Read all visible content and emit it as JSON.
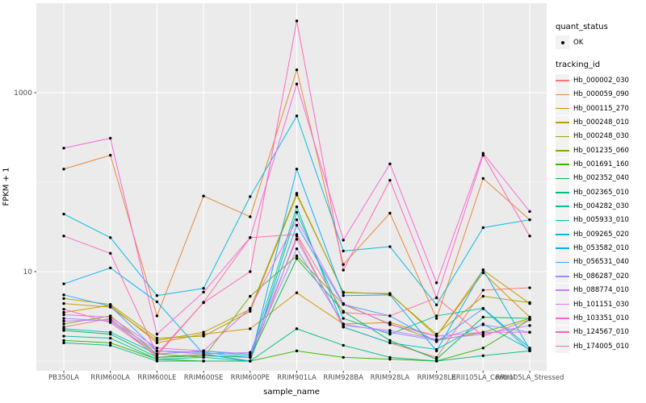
{
  "chart_data": {
    "type": "line",
    "title": "",
    "xlabel": "sample_name",
    "ylabel": "FPKM + 1",
    "y_scale": "log10",
    "y_tick_labels": [
      "1000",
      "10"
    ],
    "y_ticks": [
      1000,
      10
    ],
    "y_minor_gridlines": [
      1,
      100,
      10000
    ],
    "ylim": [
      0.9,
      9500
    ],
    "grid": true,
    "legend_position": "right",
    "x_categories": [
      "PB350LA",
      "RRIM600LA",
      "RRIM600LE",
      "RRIM600SE",
      "RRIM600PE",
      "RRIM901LA",
      "RRIM928BA",
      "RRIM928LA",
      "RRIM928LE",
      "RRII105LA_Control",
      "RRII105LA_Stressed"
    ],
    "legend": {
      "quant_status_title": "quant_status",
      "quant_status_items": [
        "OK"
      ],
      "tracking_id_title": "tracking_id"
    },
    "point_color": "#000000",
    "series": [
      {
        "name": "Hb_000002_030",
        "color": "#F8766D",
        "values": [
          2.4,
          3.0,
          1.1,
          1.2,
          1.0,
          25,
          2.4,
          1.6,
          1.1,
          6.2,
          6.6
        ]
      },
      {
        "name": "Hb_000059_090",
        "color": "#EA8331",
        "values": [
          140,
          200,
          3.2,
          70,
          41,
          1800,
          12,
          45,
          3.0,
          110,
          38
        ]
      },
      {
        "name": "Hb_000115_270",
        "color": "#D89000",
        "values": [
          3.5,
          4.2,
          1.6,
          2.0,
          2.3,
          5.8,
          2.6,
          2.7,
          1.9,
          9.7,
          3.1
        ]
      },
      {
        "name": "Hb_000248_010",
        "color": "#C49A00",
        "values": [
          4.4,
          4.0,
          1.7,
          2.1,
          3.8,
          75,
          5.8,
          5.7,
          1.9,
          10.4,
          4.4
        ]
      },
      {
        "name": "Hb_000248_030",
        "color": "#A3A500",
        "values": [
          5.0,
          4.3,
          1.8,
          1.9,
          3.6,
          72,
          5.9,
          5.6,
          2.0,
          5.3,
          4.5
        ]
      },
      {
        "name": "Hb_001235_060",
        "color": "#7CAE00",
        "values": [
          2.6,
          3.2,
          1.2,
          1.1,
          5.3,
          15,
          4.3,
          2.6,
          1.7,
          2.1,
          3.0
        ]
      },
      {
        "name": "Hb_001691_160",
        "color": "#39B600",
        "values": [
          1.7,
          1.6,
          1.05,
          1.0,
          1.0,
          1.3,
          1.1,
          1.05,
          1.0,
          1.4,
          2.9
        ]
      },
      {
        "name": "Hb_002352_040",
        "color": "#00BB4E",
        "values": [
          2.2,
          2.0,
          1.1,
          1.15,
          1.1,
          14,
          3.6,
          1.7,
          1.05,
          3.1,
          3.0
        ]
      },
      {
        "name": "Hb_002365_010",
        "color": "#00BF7D",
        "values": [
          1.6,
          1.5,
          1.0,
          1.0,
          1.0,
          2.3,
          1.5,
          1.1,
          1.0,
          1.15,
          1.3
        ]
      },
      {
        "name": "Hb_004282_030",
        "color": "#00C1A3",
        "values": [
          1.9,
          1.8,
          1.05,
          1.1,
          1.0,
          46,
          3.0,
          2.0,
          3.2,
          3.9,
          1.4
        ]
      },
      {
        "name": "Hb_005933_010",
        "color": "#00BFC4",
        "values": [
          2.3,
          2.1,
          1.2,
          1.3,
          1.15,
          53,
          2.4,
          1.6,
          1.35,
          2.6,
          1.35
        ]
      },
      {
        "name": "Hb_009265_020",
        "color": "#00BAE0",
        "values": [
          44,
          24,
          5.4,
          6.5,
          69,
          550,
          17,
          19,
          4.25,
          31,
          38
        ]
      },
      {
        "name": "Hb_053582_010",
        "color": "#00B0F6",
        "values": [
          7.3,
          11,
          4.6,
          1.2,
          1.0,
          140,
          5.4,
          5.5,
          1.3,
          10.5,
          1.35
        ]
      },
      {
        "name": "Hb_056531_040",
        "color": "#35A2FF",
        "values": [
          5.5,
          4.1,
          1.3,
          1.25,
          1.1,
          33,
          4.3,
          3.2,
          1.65,
          3.85,
          1.3
        ]
      },
      {
        "name": "Hb_086287_020",
        "color": "#9590FF",
        "values": [
          3.0,
          2.8,
          1.2,
          1.3,
          1.2,
          18,
          2.6,
          2.1,
          1.7,
          2.55,
          2.1
        ]
      },
      {
        "name": "Hb_088774_010",
        "color": "#C77CFF",
        "values": [
          2.8,
          2.9,
          1.3,
          1.2,
          1.25,
          23,
          2.5,
          2.2,
          1.75,
          2.0,
          2.5
        ]
      },
      {
        "name": "Hb_101151_030",
        "color": "#E76BF3",
        "values": [
          3.3,
          3.1,
          1.4,
          1.3,
          3.9,
          38,
          4.4,
          2.55,
          1.9,
          2.1,
          2.1
        ]
      },
      {
        "name": "Hb_103351_010",
        "color": "#FA62DB",
        "values": [
          240,
          310,
          2.0,
          5.9,
          24,
          1250,
          22.5,
          160,
          7.5,
          210,
          47
        ]
      },
      {
        "name": "Hb_124567_010",
        "color": "#FF62BC",
        "values": [
          25,
          16,
          1.2,
          4.5,
          10,
          6340,
          10.4,
          105,
          5.1,
          200,
          25
        ]
      },
      {
        "name": "Hb_174005_010",
        "color": "#FF6A98",
        "values": [
          3.8,
          2.7,
          1.15,
          4.55,
          24,
          26,
          3.5,
          3.2,
          5.1,
          1.9,
          2.9
        ]
      }
    ],
    "panel_color": "#EBEBEB",
    "gridline_color": "#FFFFFF",
    "tick_label_color": "#4D4D4D"
  }
}
